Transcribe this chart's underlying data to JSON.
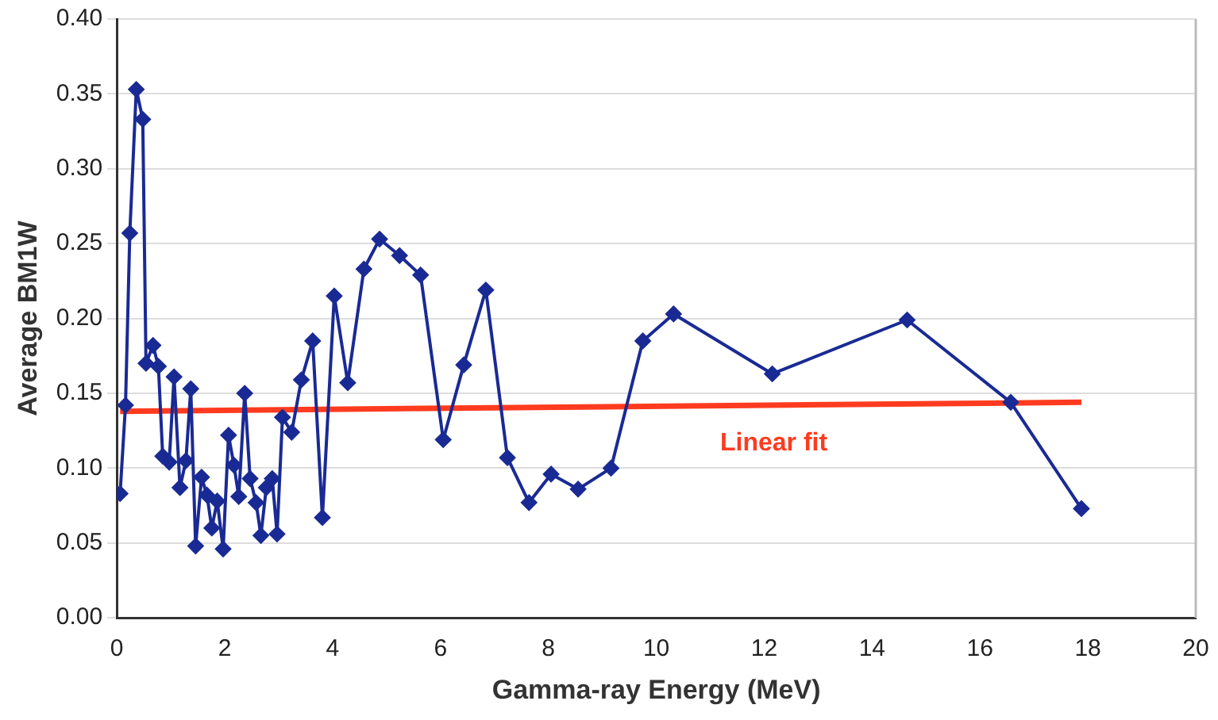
{
  "chart_data": {
    "type": "line",
    "xlabel": "Gamma-ray Energy (MeV)",
    "ylabel": "Average BM1W",
    "xlim": [
      0,
      20
    ],
    "xticks": [
      0,
      2,
      4,
      6,
      8,
      10,
      12,
      14,
      16,
      18,
      20
    ],
    "ylim": [
      0,
      0.4
    ],
    "yticks": [
      {
        "value": 0,
        "label": "0.00"
      },
      {
        "value": 0.05,
        "label": "0.05"
      },
      {
        "value": 0.1,
        "label": "0.10"
      },
      {
        "value": 0.15,
        "label": "0.15"
      },
      {
        "value": 0.2,
        "label": "0.20"
      },
      {
        "value": 0.25,
        "label": "0.25"
      },
      {
        "value": 0.3,
        "label": "0.30"
      },
      {
        "value": 0.35,
        "label": "0.35"
      },
      {
        "value": 0.4,
        "label": "0.40"
      }
    ],
    "grid": "y",
    "legend": false,
    "series": [
      {
        "color": "#1a2a94",
        "marker": "diamond",
        "line_style": "solid",
        "x": [
          0.06,
          0.16,
          0.24,
          0.36,
          0.48,
          0.54,
          0.67,
          0.77,
          0.85,
          0.97,
          1.06,
          1.17,
          1.28,
          1.37,
          1.46,
          1.57,
          1.67,
          1.76,
          1.86,
          1.97,
          2.07,
          2.17,
          2.26,
          2.37,
          2.47,
          2.58,
          2.67,
          2.77,
          2.88,
          2.97,
          3.07,
          3.24,
          3.42,
          3.63,
          3.81,
          4.03,
          4.28,
          4.58,
          4.87,
          5.24,
          5.63,
          6.05,
          6.43,
          6.84,
          7.24,
          7.64,
          8.05,
          8.55,
          9.16,
          9.75,
          10.32,
          12.15,
          14.65,
          16.57,
          17.88
        ],
        "values": [
          0.083,
          0.142,
          0.257,
          0.353,
          0.333,
          0.17,
          0.182,
          0.168,
          0.108,
          0.104,
          0.161,
          0.087,
          0.105,
          0.153,
          0.048,
          0.094,
          0.082,
          0.06,
          0.078,
          0.046,
          0.122,
          0.102,
          0.081,
          0.15,
          0.093,
          0.077,
          0.055,
          0.087,
          0.093,
          0.056,
          0.134,
          0.124,
          0.159,
          0.185,
          0.067,
          0.215,
          0.157,
          0.233,
          0.253,
          0.242,
          0.229,
          0.119,
          0.169,
          0.219,
          0.107,
          0.077,
          0.096,
          0.086,
          0.1,
          0.185,
          0.203,
          0.163,
          0.199,
          0.144,
          0.073
        ]
      },
      {
        "name": "Linear fit",
        "color": "#ff3b1f",
        "marker": "none",
        "line_style": "solid",
        "x": [
          0.06,
          17.88
        ],
        "values": [
          0.138,
          0.144
        ]
      }
    ]
  }
}
